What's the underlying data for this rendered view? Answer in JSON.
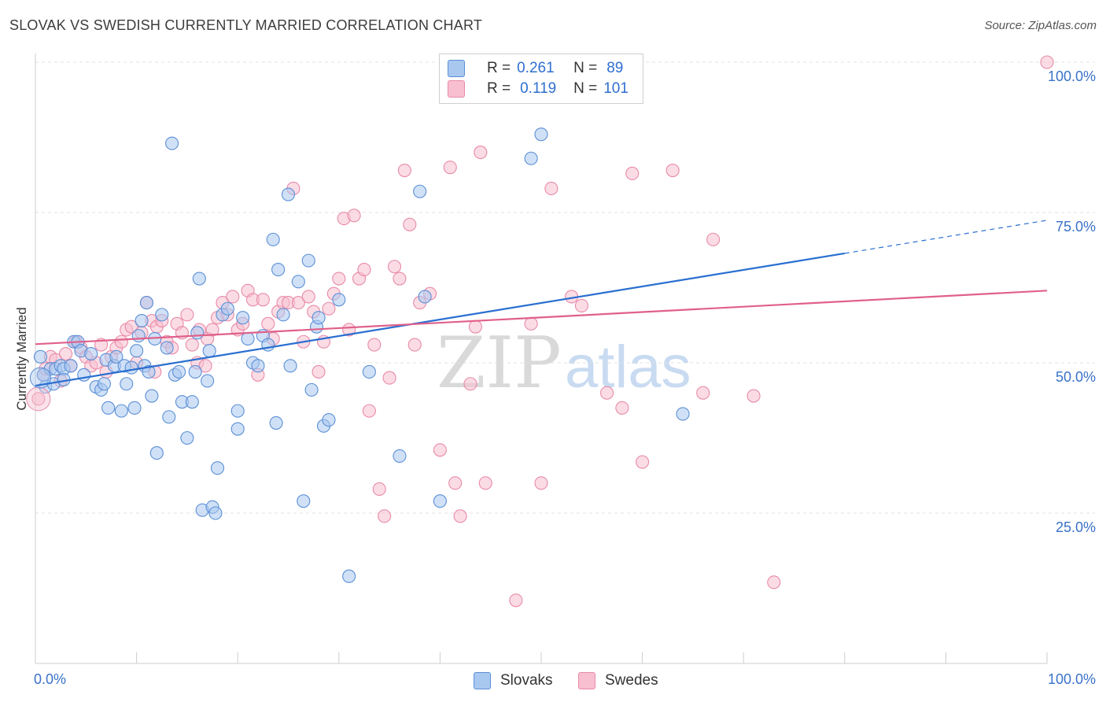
{
  "title": "SLOVAK VS SWEDISH CURRENTLY MARRIED CORRELATION CHART",
  "source": "Source: ZipAtlas.com",
  "watermark": {
    "zip": "ZIP",
    "atlas": "atlas"
  },
  "legend": {
    "rows": [
      {
        "r_label": "R =",
        "r_value": "0.261",
        "n_label": "N =",
        "n_value": "89"
      },
      {
        "r_label": "R =",
        "r_value": "0.119",
        "n_label": "N =",
        "n_value": "101"
      }
    ]
  },
  "bottom_legend": {
    "slovaks": "Slovaks",
    "swedes": "Swedes"
  },
  "colors": {
    "slovaks_fill": "#a9c8f0",
    "slovaks_stroke": "#5b8fd6",
    "slovaks_line": "#2a6fd0",
    "swedes_fill": "#f7bfd0",
    "swedes_stroke": "#e88aa8",
    "swedes_line": "#e0608a",
    "tick_text": "#3a72c8",
    "grid": "#e0e0e0"
  },
  "chart_data": {
    "type": "scatter",
    "title": "SLOVAK VS SWEDISH CURRENTLY MARRIED CORRELATION CHART",
    "xlabel": "",
    "ylabel": "Currently Married",
    "xlim": [
      0,
      100
    ],
    "ylim": [
      0,
      100
    ],
    "x_ticks": [
      "0.0%",
      "100.0%"
    ],
    "y_ticks": [
      {
        "value": 25,
        "label": "25.0%"
      },
      {
        "value": 50,
        "label": "50.0%"
      },
      {
        "value": 75,
        "label": "75.0%"
      },
      {
        "value": 100,
        "label": "100.0%"
      }
    ],
    "grid": true,
    "series": [
      {
        "name": "Slovaks",
        "R": 0.261,
        "N": 89,
        "trend": {
          "x0": 0,
          "y0": 46.2,
          "x1": 80,
          "y1": 68.2,
          "dash_to_x": 100,
          "dash_to_y": 73.7
        },
        "points": [
          [
            0.5,
            51
          ],
          [
            1,
            46
          ],
          [
            0.8,
            48
          ],
          [
            1.5,
            49
          ],
          [
            1.8,
            46.5
          ],
          [
            2,
            49
          ],
          [
            2.5,
            49.5
          ],
          [
            2.8,
            49
          ],
          [
            2.8,
            47.2
          ],
          [
            3.5,
            49.5
          ],
          [
            3.8,
            53.5
          ],
          [
            4.2,
            53.5
          ],
          [
            4.5,
            52
          ],
          [
            4.8,
            48
          ],
          [
            5.5,
            51.5
          ],
          [
            6,
            46
          ],
          [
            6.5,
            45.5
          ],
          [
            6.8,
            46.5
          ],
          [
            7,
            50.5
          ],
          [
            7.2,
            42.5
          ],
          [
            7.8,
            49.5
          ],
          [
            8,
            51
          ],
          [
            8.5,
            42
          ],
          [
            8.8,
            49.5
          ],
          [
            9,
            46.5
          ],
          [
            9.5,
            49.2
          ],
          [
            9.8,
            42.5
          ],
          [
            10,
            52
          ],
          [
            10.2,
            54.5
          ],
          [
            10.5,
            57
          ],
          [
            10.8,
            49.5
          ],
          [
            11,
            60
          ],
          [
            11.2,
            48.5
          ],
          [
            11.5,
            44.5
          ],
          [
            11.8,
            54
          ],
          [
            12,
            35
          ],
          [
            12.5,
            58
          ],
          [
            13,
            52.5
          ],
          [
            13.2,
            41
          ],
          [
            13.5,
            86.5
          ],
          [
            13.8,
            48
          ],
          [
            14.2,
            48.5
          ],
          [
            14.5,
            43.5
          ],
          [
            15,
            37.5
          ],
          [
            15.5,
            43.5
          ],
          [
            15.8,
            48.5
          ],
          [
            16,
            55
          ],
          [
            16.2,
            64
          ],
          [
            16.5,
            25.5
          ],
          [
            17,
            47
          ],
          [
            17.2,
            52
          ],
          [
            17.5,
            26
          ],
          [
            17.8,
            25
          ],
          [
            18,
            32.5
          ],
          [
            18.5,
            58
          ],
          [
            19,
            59
          ],
          [
            20,
            42
          ],
          [
            20,
            39
          ],
          [
            20.5,
            57.5
          ],
          [
            21,
            54
          ],
          [
            21.5,
            50
          ],
          [
            22,
            49.5
          ],
          [
            22.5,
            54.5
          ],
          [
            23,
            53
          ],
          [
            23.5,
            70.5
          ],
          [
            23.8,
            40
          ],
          [
            24,
            65.5
          ],
          [
            24.5,
            58
          ],
          [
            25,
            78
          ],
          [
            25.2,
            49.5
          ],
          [
            26,
            63.5
          ],
          [
            26.5,
            27
          ],
          [
            27,
            67
          ],
          [
            27.3,
            45.5
          ],
          [
            27.8,
            56
          ],
          [
            28,
            57.5
          ],
          [
            28.5,
            39.5
          ],
          [
            29,
            40.5
          ],
          [
            30,
            60.5
          ],
          [
            31,
            14.5
          ],
          [
            33,
            48.5
          ],
          [
            36,
            34.5
          ],
          [
            38,
            78.5
          ],
          [
            38.5,
            61
          ],
          [
            40,
            27
          ],
          [
            49,
            84
          ],
          [
            50,
            88
          ],
          [
            52.5,
            100
          ],
          [
            64,
            41.5
          ]
        ]
      },
      {
        "name": "Swedes",
        "R": 0.119,
        "N": 101,
        "trend": {
          "x0": 0,
          "y0": 53.1,
          "x1": 100,
          "y1": 62.0
        },
        "points": [
          [
            0.3,
            44
          ],
          [
            0.8,
            48
          ],
          [
            1,
            49
          ],
          [
            1.5,
            51
          ],
          [
            2,
            50.5
          ],
          [
            2.5,
            47
          ],
          [
            3,
            51.5
          ],
          [
            3.5,
            49.5
          ],
          [
            4,
            53.5
          ],
          [
            4.5,
            52.5
          ],
          [
            5,
            51
          ],
          [
            5.5,
            49.5
          ],
          [
            6,
            50
          ],
          [
            6.5,
            53
          ],
          [
            7,
            48.5
          ],
          [
            7.5,
            51
          ],
          [
            8,
            52.5
          ],
          [
            8.5,
            53.5
          ],
          [
            9,
            55.5
          ],
          [
            9.5,
            56
          ],
          [
            10,
            50
          ],
          [
            10.5,
            55
          ],
          [
            11,
            60
          ],
          [
            11.5,
            57
          ],
          [
            11.8,
            48.5
          ],
          [
            12,
            56
          ],
          [
            12.5,
            57
          ],
          [
            13,
            53.5
          ],
          [
            13.5,
            52.5
          ],
          [
            14,
            56.5
          ],
          [
            14.5,
            55
          ],
          [
            15,
            58
          ],
          [
            15.5,
            53
          ],
          [
            16,
            50
          ],
          [
            16.2,
            55.5
          ],
          [
            16.8,
            49.5
          ],
          [
            17,
            54
          ],
          [
            17.5,
            55.5
          ],
          [
            18,
            57.5
          ],
          [
            18.5,
            60
          ],
          [
            19,
            58
          ],
          [
            19.5,
            61
          ],
          [
            20,
            55.5
          ],
          [
            20.5,
            56.5
          ],
          [
            21,
            62
          ],
          [
            21.5,
            60.5
          ],
          [
            22,
            48
          ],
          [
            22.5,
            60.5
          ],
          [
            23,
            56.5
          ],
          [
            23.5,
            54
          ],
          [
            24,
            58.5
          ],
          [
            24.5,
            60
          ],
          [
            25,
            60
          ],
          [
            25.5,
            79
          ],
          [
            26,
            60
          ],
          [
            26.5,
            53.5
          ],
          [
            27,
            61
          ],
          [
            27.5,
            58.5
          ],
          [
            28,
            48.5
          ],
          [
            28.5,
            53.5
          ],
          [
            29,
            59
          ],
          [
            29.5,
            61.5
          ],
          [
            30,
            64
          ],
          [
            30.5,
            74
          ],
          [
            31,
            55.5
          ],
          [
            31.5,
            74.5
          ],
          [
            32,
            64
          ],
          [
            32.5,
            65.5
          ],
          [
            33,
            42
          ],
          [
            33.5,
            53
          ],
          [
            34,
            29
          ],
          [
            34.5,
            24.5
          ],
          [
            35,
            47.5
          ],
          [
            35.5,
            66
          ],
          [
            36,
            64
          ],
          [
            36.5,
            82
          ],
          [
            37,
            73
          ],
          [
            37.5,
            53
          ],
          [
            38,
            60
          ],
          [
            39,
            61.5
          ],
          [
            40,
            35.5
          ],
          [
            41,
            82.5
          ],
          [
            41.5,
            30
          ],
          [
            42,
            24.5
          ],
          [
            43,
            46.5
          ],
          [
            43.5,
            56
          ],
          [
            44,
            85
          ],
          [
            44.5,
            30
          ],
          [
            47.5,
            10.5
          ],
          [
            49,
            56.5
          ],
          [
            50,
            30
          ],
          [
            51,
            79
          ],
          [
            53,
            61
          ],
          [
            54,
            59.5
          ],
          [
            56.5,
            45
          ],
          [
            58,
            42.5
          ],
          [
            59,
            81.5
          ],
          [
            60,
            33.5
          ],
          [
            63,
            82
          ],
          [
            66,
            45
          ],
          [
            67,
            70.5
          ],
          [
            71,
            44.5
          ],
          [
            73,
            13.5
          ],
          [
            100,
            100
          ]
        ]
      }
    ]
  }
}
